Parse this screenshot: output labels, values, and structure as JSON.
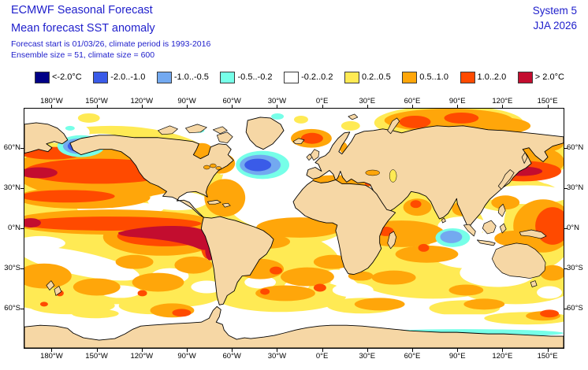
{
  "header": {
    "title": "ECMWF Seasonal Forecast",
    "subtitle": "Mean forecast SST anomaly",
    "info_line1": "Forecast start is 01/03/26, climate period is 1993-2016",
    "info_line2": "Ensemble size = 51, climate size = 600",
    "system": "System 5",
    "season": "JJA 2026"
  },
  "legend": {
    "items": [
      {
        "label": "<-2.0°C",
        "color": "#000086"
      },
      {
        "label": "-2.0..-1.0",
        "color": "#3a5be8"
      },
      {
        "label": "-1.0..-0.5",
        "color": "#73a9f0"
      },
      {
        "label": "-0.5..-0.2",
        "color": "#76ffe8"
      },
      {
        "label": "-0.2..0.2",
        "color": "#ffffff"
      },
      {
        "label": "0.2..0.5",
        "color": "#ffea54"
      },
      {
        "label": "0.5..1.0",
        "color": "#ffa60a"
      },
      {
        "label": "1.0..2.0",
        "color": "#ff4a00"
      },
      {
        "label": "> 2.0°C",
        "color": "#c30d2f"
      }
    ]
  },
  "axes": {
    "lon_labels": [
      "180°W",
      "150°W",
      "120°W",
      "90°W",
      "60°W",
      "30°W",
      "0°E",
      "30°E",
      "60°E",
      "90°E",
      "120°E",
      "150°E"
    ],
    "lat_labels": [
      "60°N",
      "30°N",
      "0°N",
      "30°S",
      "60°S"
    ]
  },
  "chart_data": {
    "type": "heatmap",
    "title": "Mean forecast SST anomaly",
    "units": "°C",
    "projection": "equirectangular world map, Pacific at left (left edge near 160°E)",
    "legend_position": "top",
    "bins": [
      "<-2.0",
      "-2.0..-1.0",
      "-1.0..-0.5",
      "-0.5..-0.2",
      "-0.2..0.2",
      "0.2..0.5",
      "0.5..1.0",
      "1.0..2.0",
      ">2.0"
    ],
    "bin_colors": [
      "#000086",
      "#3a5be8",
      "#73a9f0",
      "#76ffe8",
      "#ffffff",
      "#ffea54",
      "#ffa60a",
      "#ff4a00",
      "#c30d2f"
    ],
    "lon_ticks_deg": [
      -180,
      -150,
      -120,
      -90,
      -60,
      -30,
      0,
      30,
      60,
      90,
      120,
      150
    ],
    "lat_ticks_deg": [
      60,
      30,
      0,
      -30,
      -60
    ],
    "features": [
      {
        "region": "Equatorial eastern Pacific El Niño tongue (~160°W to South American coast, 0-10°S)",
        "anomaly_c": "> 2.0",
        "note": "dark red core ringed by 1.0..2.0 and 0.5..1.0"
      },
      {
        "region": "Central North Pacific band (30-45°N)",
        "anomaly_c": "1.0..2.0",
        "note": "dark red streak near date line ~40°N"
      },
      {
        "region": "Gulf of Alaska",
        "anomaly_c": "-2.0..-1.0 core",
        "note": "light blue / cyan fringe"
      },
      {
        "region": "Subpolar North Atlantic cold blob (~50°N, 25-40°W)",
        "anomaly_c": "-2.0..-1.0 core",
        "note": "surrounded by -1.0..-0.5, -0.5..-0.2 and white"
      },
      {
        "region": "Northwest Pacific east of Japan (~40°N)",
        "anomaly_c": "> 2.0 core",
        "note": "within broad 1.0..2.0 / 0.5..1.0 area"
      },
      {
        "region": "Norwegian Sea near Iceland and Barents/Kara Seas",
        "anomaly_c": "1.0..2.0 patches",
        "note": "orange background"
      },
      {
        "region": "SE Indian Ocean off Sumatra/Java",
        "anomaly_c": "-1.0..-0.5",
        "note": "cyan fringe, white surroundings"
      },
      {
        "region": "Mediterranean Sea",
        "anomaly_c": "0.5..1.0"
      },
      {
        "region": "Tropical and subtropical oceans generally",
        "anomaly_c": "0.2..1.0",
        "note": "mottled yellow/orange with scattered 1.0..2.0 spots"
      },
      {
        "region": "Southern Ocean near Antarctica",
        "anomaly_c": "-0.2..0.2",
        "note": "white band; -0.5..-0.2 cyan sliver along East Antarctic coast"
      }
    ]
  }
}
